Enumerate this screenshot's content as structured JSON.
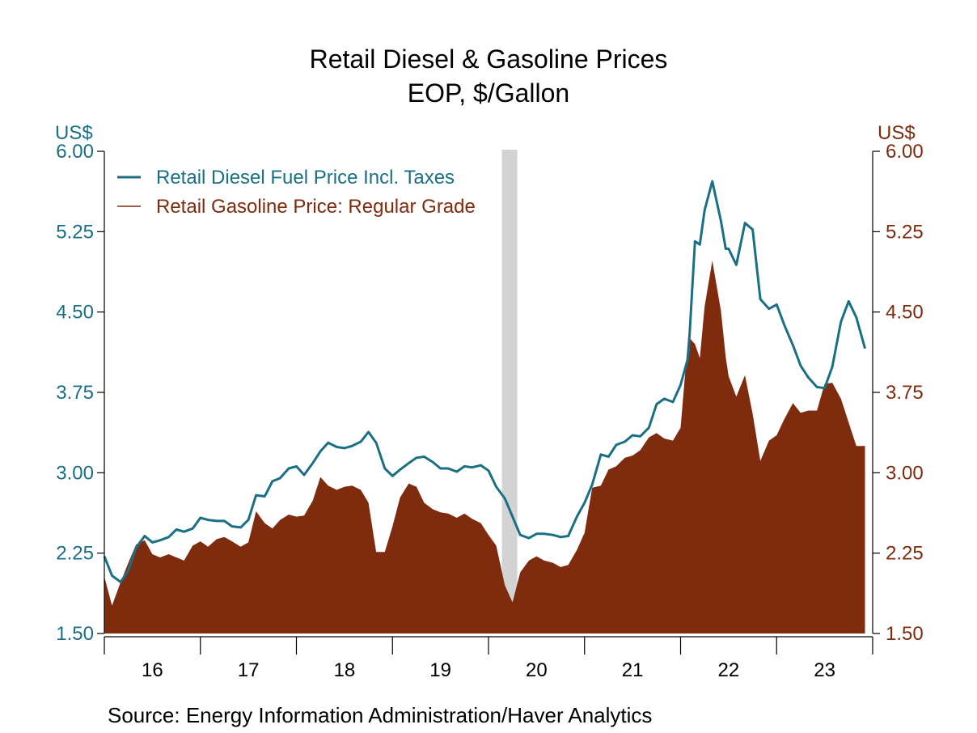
{
  "chart_data": {
    "type": "line",
    "title": "Retail Diesel & Gasoline Prices",
    "subtitle": "EOP, $/Gallon",
    "source": "Source:  Energy Information Administration/Haver Analytics",
    "left_axis": {
      "unit": "US$",
      "ylim": [
        1.5,
        6.0
      ],
      "ticks": [
        "1.50",
        "2.25",
        "3.00",
        "3.75",
        "4.50",
        "5.25",
        "6.00"
      ],
      "color": "#1a6f84"
    },
    "right_axis": {
      "unit": "US$",
      "ylim": [
        1.5,
        6.0
      ],
      "ticks": [
        "1.50",
        "2.25",
        "3.00",
        "3.75",
        "4.50",
        "5.25",
        "6.00"
      ],
      "color": "#7e2b0e"
    },
    "x_axis": {
      "labels": [
        "16",
        "17",
        "18",
        "19",
        "20",
        "21",
        "22",
        "23"
      ],
      "start": 2016.0,
      "end": 2024.0
    },
    "recession_shading": [
      {
        "start": 2020.14,
        "end": 2020.3
      }
    ],
    "legend": {
      "position": "top-left"
    },
    "colors": {
      "diesel": "#1a6f84",
      "gasoline": "#7e2b0e",
      "recession": "#d3d3d3"
    },
    "series": [
      {
        "name": "Retail Diesel Fuel Price Incl. Taxes",
        "style": "line",
        "x": [
          2016.0,
          2016.08,
          2016.17,
          2016.25,
          2016.33,
          2016.42,
          2016.5,
          2016.58,
          2016.67,
          2016.75,
          2016.83,
          2016.92,
          2017.0,
          2017.08,
          2017.17,
          2017.25,
          2017.33,
          2017.42,
          2017.5,
          2017.58,
          2017.67,
          2017.75,
          2017.83,
          2017.92,
          2018.0,
          2018.08,
          2018.17,
          2018.25,
          2018.33,
          2018.42,
          2018.5,
          2018.58,
          2018.67,
          2018.75,
          2018.83,
          2018.92,
          2019.0,
          2019.08,
          2019.17,
          2019.25,
          2019.33,
          2019.42,
          2019.5,
          2019.58,
          2019.67,
          2019.75,
          2019.83,
          2019.92,
          2020.0,
          2020.08,
          2020.17,
          2020.25,
          2020.33,
          2020.42,
          2020.5,
          2020.58,
          2020.67,
          2020.75,
          2020.83,
          2020.92,
          2021.0,
          2021.08,
          2021.17,
          2021.25,
          2021.33,
          2021.42,
          2021.5,
          2021.58,
          2021.67,
          2021.75,
          2021.83,
          2021.92,
          2022.0,
          2022.08,
          2022.15,
          2022.2,
          2022.25,
          2022.33,
          2022.42,
          2022.47,
          2022.5,
          2022.58,
          2022.67,
          2022.75,
          2022.83,
          2022.92,
          2023.0,
          2023.08,
          2023.17,
          2023.25,
          2023.33,
          2023.42,
          2023.5,
          2023.58,
          2023.67,
          2023.75,
          2023.83,
          2023.92
        ],
        "values": [
          2.22,
          2.04,
          1.98,
          2.09,
          2.3,
          2.41,
          2.35,
          2.37,
          2.4,
          2.47,
          2.45,
          2.48,
          2.58,
          2.56,
          2.55,
          2.55,
          2.5,
          2.49,
          2.56,
          2.79,
          2.78,
          2.92,
          2.95,
          3.04,
          3.06,
          2.98,
          3.09,
          3.2,
          3.28,
          3.24,
          3.23,
          3.25,
          3.29,
          3.38,
          3.28,
          3.04,
          2.97,
          3.03,
          3.09,
          3.14,
          3.15,
          3.1,
          3.04,
          3.04,
          3.01,
          3.06,
          3.05,
          3.07,
          3.02,
          2.87,
          2.76,
          2.59,
          2.42,
          2.39,
          2.43,
          2.43,
          2.42,
          2.4,
          2.41,
          2.59,
          2.72,
          2.89,
          3.17,
          3.15,
          3.26,
          3.29,
          3.35,
          3.34,
          3.42,
          3.64,
          3.69,
          3.66,
          3.82,
          4.08,
          5.16,
          5.13,
          5.45,
          5.72,
          5.35,
          5.09,
          5.09,
          4.94,
          5.33,
          5.27,
          4.62,
          4.53,
          4.57,
          4.38,
          4.19,
          4.0,
          3.89,
          3.8,
          3.79,
          3.99,
          4.41,
          4.6,
          4.45,
          4.16
        ]
      },
      {
        "name": "Retail Gasoline Price: Regular Grade",
        "style": "area",
        "x": [
          2016.0,
          2016.08,
          2016.17,
          2016.25,
          2016.33,
          2016.42,
          2016.5,
          2016.58,
          2016.67,
          2016.75,
          2016.83,
          2016.92,
          2017.0,
          2017.08,
          2017.17,
          2017.25,
          2017.33,
          2017.42,
          2017.5,
          2017.58,
          2017.67,
          2017.75,
          2017.83,
          2017.92,
          2018.0,
          2018.08,
          2018.17,
          2018.25,
          2018.33,
          2018.42,
          2018.5,
          2018.58,
          2018.67,
          2018.75,
          2018.83,
          2018.92,
          2019.0,
          2019.08,
          2019.17,
          2019.25,
          2019.33,
          2019.42,
          2019.5,
          2019.58,
          2019.67,
          2019.75,
          2019.83,
          2019.92,
          2020.0,
          2020.08,
          2020.17,
          2020.25,
          2020.33,
          2020.42,
          2020.5,
          2020.58,
          2020.67,
          2020.75,
          2020.83,
          2020.92,
          2021.0,
          2021.08,
          2021.17,
          2021.25,
          2021.33,
          2021.42,
          2021.5,
          2021.58,
          2021.67,
          2021.75,
          2021.83,
          2021.92,
          2022.0,
          2022.08,
          2022.15,
          2022.2,
          2022.25,
          2022.33,
          2022.42,
          2022.47,
          2022.5,
          2022.58,
          2022.67,
          2022.75,
          2022.83,
          2022.92,
          2023.0,
          2023.08,
          2023.17,
          2023.25,
          2023.33,
          2023.42,
          2023.5,
          2023.58,
          2023.67,
          2023.75,
          2023.83,
          2023.92
        ],
        "values": [
          2.03,
          1.76,
          1.98,
          2.16,
          2.33,
          2.37,
          2.24,
          2.21,
          2.24,
          2.21,
          2.18,
          2.32,
          2.36,
          2.31,
          2.38,
          2.4,
          2.36,
          2.31,
          2.35,
          2.64,
          2.53,
          2.48,
          2.56,
          2.61,
          2.59,
          2.6,
          2.74,
          2.96,
          2.88,
          2.84,
          2.87,
          2.88,
          2.84,
          2.72,
          2.26,
          2.26,
          2.5,
          2.77,
          2.9,
          2.87,
          2.72,
          2.66,
          2.63,
          2.62,
          2.58,
          2.62,
          2.57,
          2.53,
          2.42,
          2.32,
          1.95,
          1.79,
          2.07,
          2.18,
          2.22,
          2.18,
          2.16,
          2.12,
          2.14,
          2.28,
          2.44,
          2.86,
          2.88,
          3.03,
          3.06,
          3.14,
          3.16,
          3.21,
          3.33,
          3.37,
          3.32,
          3.3,
          3.42,
          4.27,
          4.2,
          4.07,
          4.55,
          4.98,
          4.51,
          4.08,
          3.9,
          3.71,
          3.91,
          3.55,
          3.11,
          3.3,
          3.35,
          3.5,
          3.65,
          3.56,
          3.58,
          3.58,
          3.83,
          3.84,
          3.69,
          3.47,
          3.25,
          3.25
        ]
      }
    ]
  }
}
